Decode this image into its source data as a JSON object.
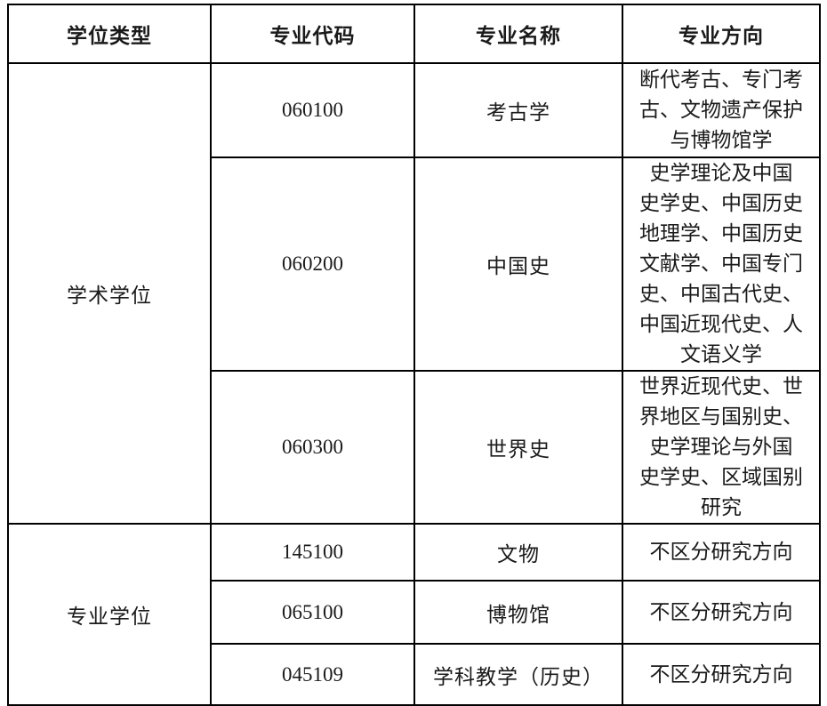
{
  "table": {
    "headers": {
      "degree_type": "学位类型",
      "major_code": "专业代码",
      "major_name": "专业名称",
      "major_direction": "专业方向"
    },
    "groups": [
      {
        "degree_type": "学术学位",
        "rows": [
          {
            "code": "060100",
            "name": "考古学",
            "direction": "断代考古、专门考\n古、文物遗产保护\n与博物馆学"
          },
          {
            "code": "060200",
            "name": "中国史",
            "direction": "史学理论及中国\n史学史、中国历史\n地理学、中国历史\n文献学、中国专门\n史、中国古代史、\n中国近现代史、人\n文语义学"
          },
          {
            "code": "060300",
            "name": "世界史",
            "direction": "世界近现代史、世\n界地区与国别史、\n史学理论与外国\n史学史、区域国别\n研究"
          }
        ]
      },
      {
        "degree_type": "专业学位",
        "rows": [
          {
            "code": "145100",
            "name": "文物",
            "direction": "不区分研究方向"
          },
          {
            "code": "065100",
            "name": "博物馆",
            "direction": "不区分研究方向"
          },
          {
            "code": "045109",
            "name": "学科教学（历史）",
            "direction": "不区分研究方向"
          }
        ]
      }
    ]
  },
  "colors": {
    "border": "#000000",
    "text": "#1a1a1a",
    "background": "#ffffff"
  }
}
